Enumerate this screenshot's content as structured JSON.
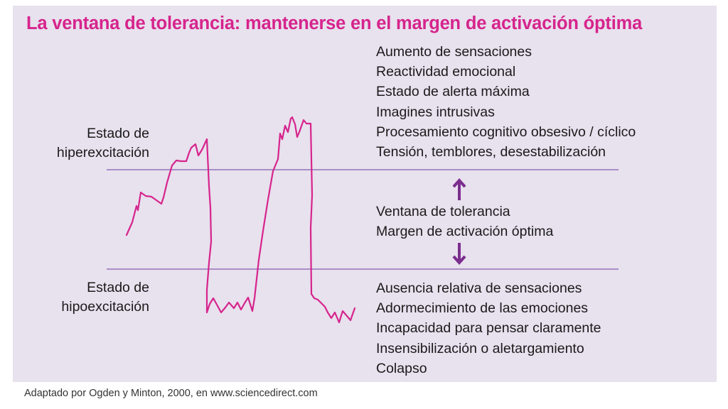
{
  "title": "La ventana de tolerancia: mantenerse en el margen de activación óptima",
  "hyperarousal": {
    "label_line1": "Estado de",
    "label_line2": "hiperexcitación",
    "symptoms": [
      "Aumento de sensaciones",
      "Reactividad emocional",
      "Estado de alerta máxima",
      "Imagines intrusivas",
      "Procesamiento cognitivo obsesivo / cíclico",
      "Tensión, temblores, desestabilización"
    ]
  },
  "window": {
    "lines": [
      "Ventana de tolerancia",
      "Margen de activación óptima"
    ]
  },
  "hypoarousal": {
    "label_line1": "Estado de",
    "label_line2": "hipoexcitación",
    "symptoms": [
      "Ausencia relativa de sensaciones",
      "Adormecimiento de las emociones",
      "Incapacidad para pensar claramente",
      "Insensibilización o aletargamiento",
      "Colapso"
    ]
  },
  "credit": "Adaptado por Ogden y Minton, 2000, en www.sciencedirect.com",
  "colors": {
    "title": "#d6248c",
    "trace": "#d6248c",
    "boundary_lines": "#a98fc6",
    "arrows": "#7b2d8e",
    "background": "#e8e1ee"
  }
}
